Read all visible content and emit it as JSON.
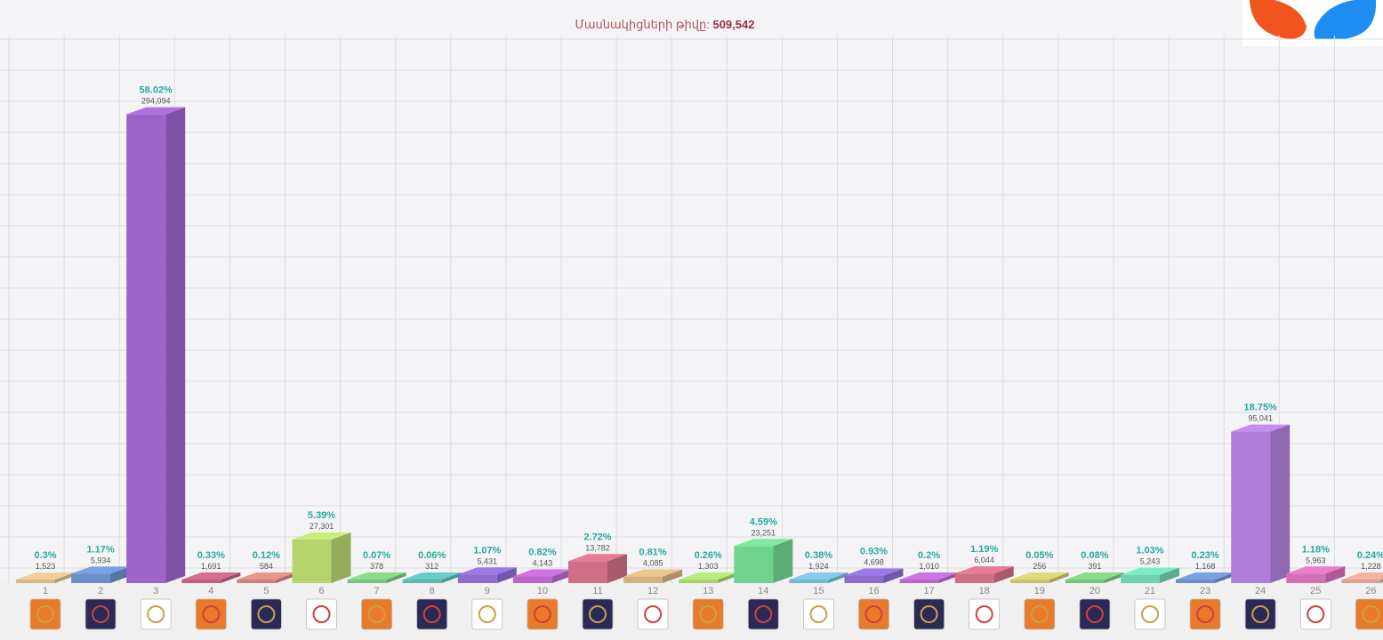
{
  "header": {
    "label": "Մասնակիցների թիվը:",
    "value": "509,542"
  },
  "brand": {
    "logo_icon": "orange-blue-petals-logo-icon",
    "colors": [
      "#f2541d",
      "#1e8cf0"
    ]
  },
  "chart_data": {
    "type": "bar",
    "title": "",
    "xlabel": "",
    "ylabel": "",
    "ylim": [
      0,
      60
    ],
    "grid": true,
    "categories": [
      "1",
      "2",
      "3",
      "4",
      "5",
      "6",
      "7",
      "8",
      "9",
      "10",
      "11",
      "12",
      "13",
      "14",
      "15",
      "16",
      "17",
      "18",
      "19",
      "20",
      "21",
      "23",
      "24",
      "25",
      "26"
    ],
    "series": [
      {
        "percent_labels": [
          "0.3%",
          "1.17%",
          "58.02%",
          "0.33%",
          "0.12%",
          "5.39%",
          "0.07%",
          "0.06%",
          "1.07%",
          "0.82%",
          "2.72%",
          "0.81%",
          "0.26%",
          "4.59%",
          "0.38%",
          "0.93%",
          "0.2%",
          "1.19%",
          "0.05%",
          "0.08%",
          "1.03%",
          "0.23%",
          "18.75%",
          "1.18%",
          "0.24%"
        ],
        "values": [
          0.3,
          1.17,
          58.02,
          0.33,
          0.12,
          5.39,
          0.07,
          0.06,
          1.07,
          0.82,
          2.72,
          0.81,
          0.26,
          4.59,
          0.38,
          0.93,
          0.2,
          1.19,
          0.05,
          0.08,
          1.03,
          0.23,
          18.75,
          1.18,
          0.24
        ],
        "votes": [
          "1,523",
          "5,934",
          "294,094",
          "1,691",
          "584",
          "27,301",
          "378",
          "312",
          "5,431",
          "4,143",
          "13,782",
          "4,085",
          "1,303",
          "23,251",
          "1,924",
          "4,698",
          "1,010",
          "6,044",
          "256",
          "391",
          "5,243",
          "1,168",
          "95,041",
          "5,963",
          "1,228"
        ]
      }
    ],
    "colors": [
      "#d9b98c",
      "#6c8fc9",
      "#9d63c9",
      "#c0617f",
      "#cf8479",
      "#b6d36e",
      "#7cc47e",
      "#5cb8b0",
      "#8a6ccf",
      "#b768c9",
      "#cf6e86",
      "#d3b07f",
      "#a6d36e",
      "#6fd38e",
      "#78b6cf",
      "#8a6ccf",
      "#b768c9",
      "#cf6e86",
      "#c4c46e",
      "#7cc47e",
      "#6fd3b0",
      "#6c8fc9",
      "#b07dd9",
      "#d46eb8",
      "#d9a090"
    ],
    "party_logos": [
      "orange-square-logo-icon",
      "ring-logo-icon",
      "dark-square-logo-icon",
      "crest-logo-icon",
      "striped-square-logo-icon",
      "star-logo-icon",
      "armenian-text-logo-icon",
      "ornament-logo-icon",
      "purple-square-logo-icon",
      "house-logo-icon",
      "circle-ornament-logo-icon",
      "cross-emblem-logo-icon",
      "blue-banner-logo-icon",
      "arc-logo-icon",
      "red-figure-logo-icon",
      "navy-square-logo-icon",
      "green-shield-logo-icon",
      "line-text-logo-icon",
      "dark-emblem-logo-icon",
      "mountain-logo-icon",
      "bird-logo-icon",
      "flag-logo-icon",
      "text-arrow-logo-icon",
      "runner-logo-icon",
      "gold-v-logo-icon"
    ]
  }
}
